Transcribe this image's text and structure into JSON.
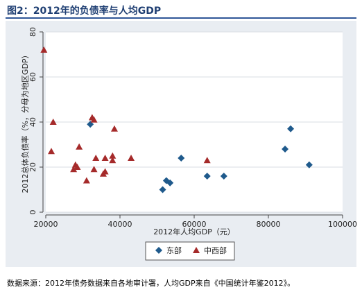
{
  "figure": {
    "title": "图2：2012年的负债率与人均GDP",
    "source_note": "数据来源：2012年债务数据来自各地审计署，人均GDP来自《中国统计年鉴2012》。"
  },
  "colors": {
    "title": "#1f3f73",
    "rule": "#2f5597",
    "panel_bg": "#e9edf2",
    "plot_bg": "#ffffff",
    "east": "#1f5a8c",
    "central_west": "#a52a2a",
    "grid": "#d9dde3"
  },
  "chart_data": {
    "type": "scatter",
    "xlabel": "2012年人均GDP（元）",
    "ylabel": "2012总体负债率（%，分母为地区GDP）",
    "xlim": [
      20000,
      100000
    ],
    "ylim": [
      0,
      80
    ],
    "x_ticks": [
      "20000",
      "40000",
      "60000",
      "80000",
      "100000"
    ],
    "y_ticks": [
      "0",
      "20",
      "40",
      "60",
      "80"
    ],
    "grid": true,
    "legend_position": "bottom",
    "series": [
      {
        "name": "东部",
        "marker": "diamond",
        "points": [
          {
            "x": 32000,
            "y": 39
          },
          {
            "x": 51500,
            "y": 10
          },
          {
            "x": 52500,
            "y": 14
          },
          {
            "x": 53500,
            "y": 13
          },
          {
            "x": 56500,
            "y": 24
          },
          {
            "x": 63500,
            "y": 16
          },
          {
            "x": 68000,
            "y": 16
          },
          {
            "x": 84500,
            "y": 28
          },
          {
            "x": 86000,
            "y": 37
          },
          {
            "x": 91000,
            "y": 21
          }
        ]
      },
      {
        "name": "中西部",
        "marker": "triangle",
        "points": [
          {
            "x": 19500,
            "y": 72
          },
          {
            "x": 22000,
            "y": 40
          },
          {
            "x": 21500,
            "y": 27
          },
          {
            "x": 27500,
            "y": 19
          },
          {
            "x": 28000,
            "y": 21
          },
          {
            "x": 28500,
            "y": 20
          },
          {
            "x": 29000,
            "y": 29
          },
          {
            "x": 31000,
            "y": 14
          },
          {
            "x": 32500,
            "y": 42
          },
          {
            "x": 33000,
            "y": 41
          },
          {
            "x": 33000,
            "y": 19
          },
          {
            "x": 33500,
            "y": 24
          },
          {
            "x": 35500,
            "y": 17
          },
          {
            "x": 36000,
            "y": 18
          },
          {
            "x": 36000,
            "y": 24
          },
          {
            "x": 38000,
            "y": 25
          },
          {
            "x": 38000,
            "y": 23
          },
          {
            "x": 38500,
            "y": 37
          },
          {
            "x": 43000,
            "y": 24
          },
          {
            "x": 63500,
            "y": 23
          }
        ]
      }
    ]
  }
}
